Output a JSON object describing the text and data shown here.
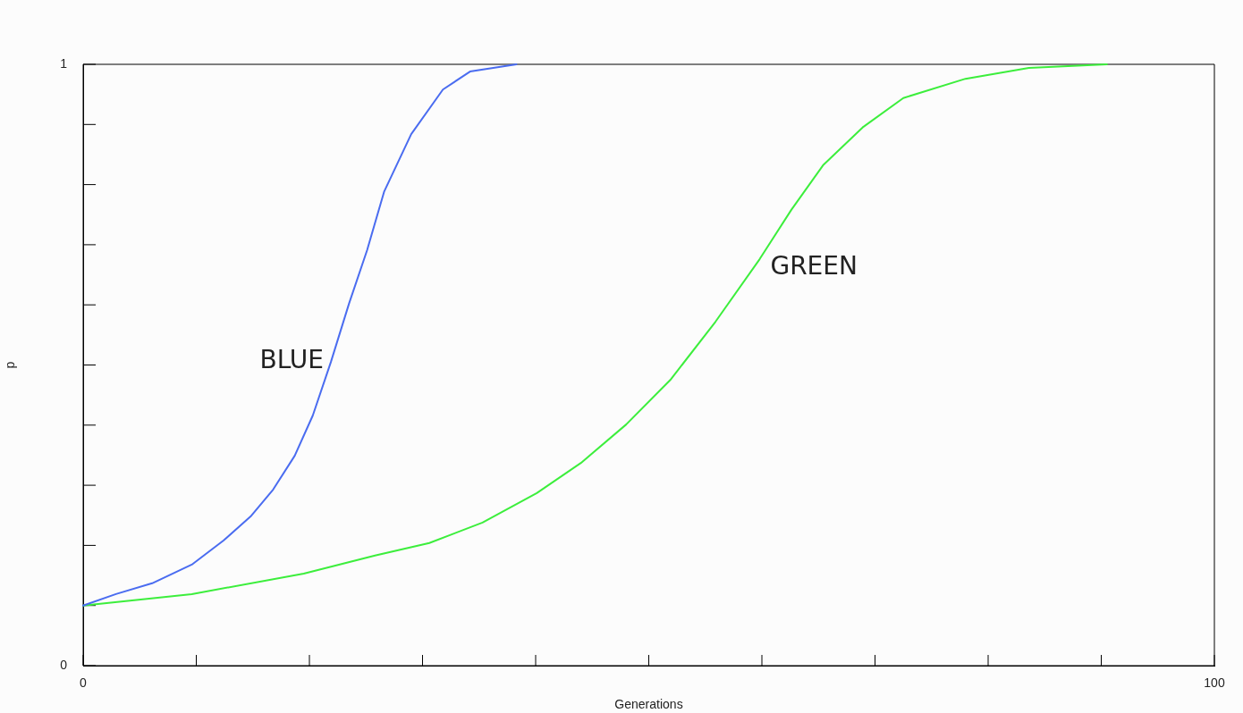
{
  "chart_data": {
    "type": "line",
    "xlabel": "Generations",
    "ylabel": "p",
    "xlim": [
      0,
      100
    ],
    "ylim": [
      0,
      1
    ],
    "xticks": [
      0,
      {
        "value": 10,
        "label": null
      },
      {
        "value": 20,
        "label": null
      },
      {
        "value": 30,
        "label": null
      },
      {
        "value": 40,
        "label": null
      },
      {
        "value": 50,
        "label": null
      },
      {
        "value": 60,
        "label": null
      },
      {
        "value": 70,
        "label": null
      },
      {
        "value": 80,
        "label": null
      },
      {
        "value": 90,
        "label": null
      },
      100
    ],
    "yticks": [
      0,
      {
        "value": 0.1,
        "label": null
      },
      {
        "value": 0.2,
        "label": null
      },
      {
        "value": 0.3,
        "label": null
      },
      {
        "value": 0.4,
        "label": null
      },
      {
        "value": 0.5,
        "label": null
      },
      {
        "value": 0.6,
        "label": null
      },
      {
        "value": 0.7,
        "label": null
      },
      {
        "value": 0.8,
        "label": null
      },
      {
        "value": 0.9,
        "label": null
      },
      1
    ],
    "grid": false,
    "legend": false,
    "marker": "none",
    "line_style": "solid",
    "series": [
      {
        "name": "BLUE",
        "color": "#4a6cf0",
        "x": [
          0,
          2.9,
          6.1,
          9.6,
          12.4,
          14.8,
          16.8,
          18.7,
          20.3,
          21.9,
          23.5,
          25.1,
          26.6,
          29.0,
          31.8,
          34.2,
          38.3
        ],
        "values": [
          0.1,
          0.119,
          0.137,
          0.168,
          0.208,
          0.248,
          0.293,
          0.349,
          0.416,
          0.505,
          0.602,
          0.691,
          0.788,
          0.884,
          0.958,
          0.988,
          1.0
        ]
      },
      {
        "name": "GREEN",
        "color": "#3cee3c",
        "x": [
          0,
          9.6,
          19.5,
          25.8,
          30.6,
          35.3,
          40.1,
          44.0,
          48.0,
          51.9,
          55.9,
          59.8,
          62.6,
          65.4,
          68.9,
          72.5,
          78.0,
          83.6,
          90.5
        ],
        "values": [
          0.1,
          0.119,
          0.153,
          0.183,
          0.204,
          0.238,
          0.287,
          0.337,
          0.401,
          0.475,
          0.572,
          0.676,
          0.758,
          0.832,
          0.895,
          0.944,
          0.976,
          0.994,
          1.0
        ]
      }
    ]
  }
}
